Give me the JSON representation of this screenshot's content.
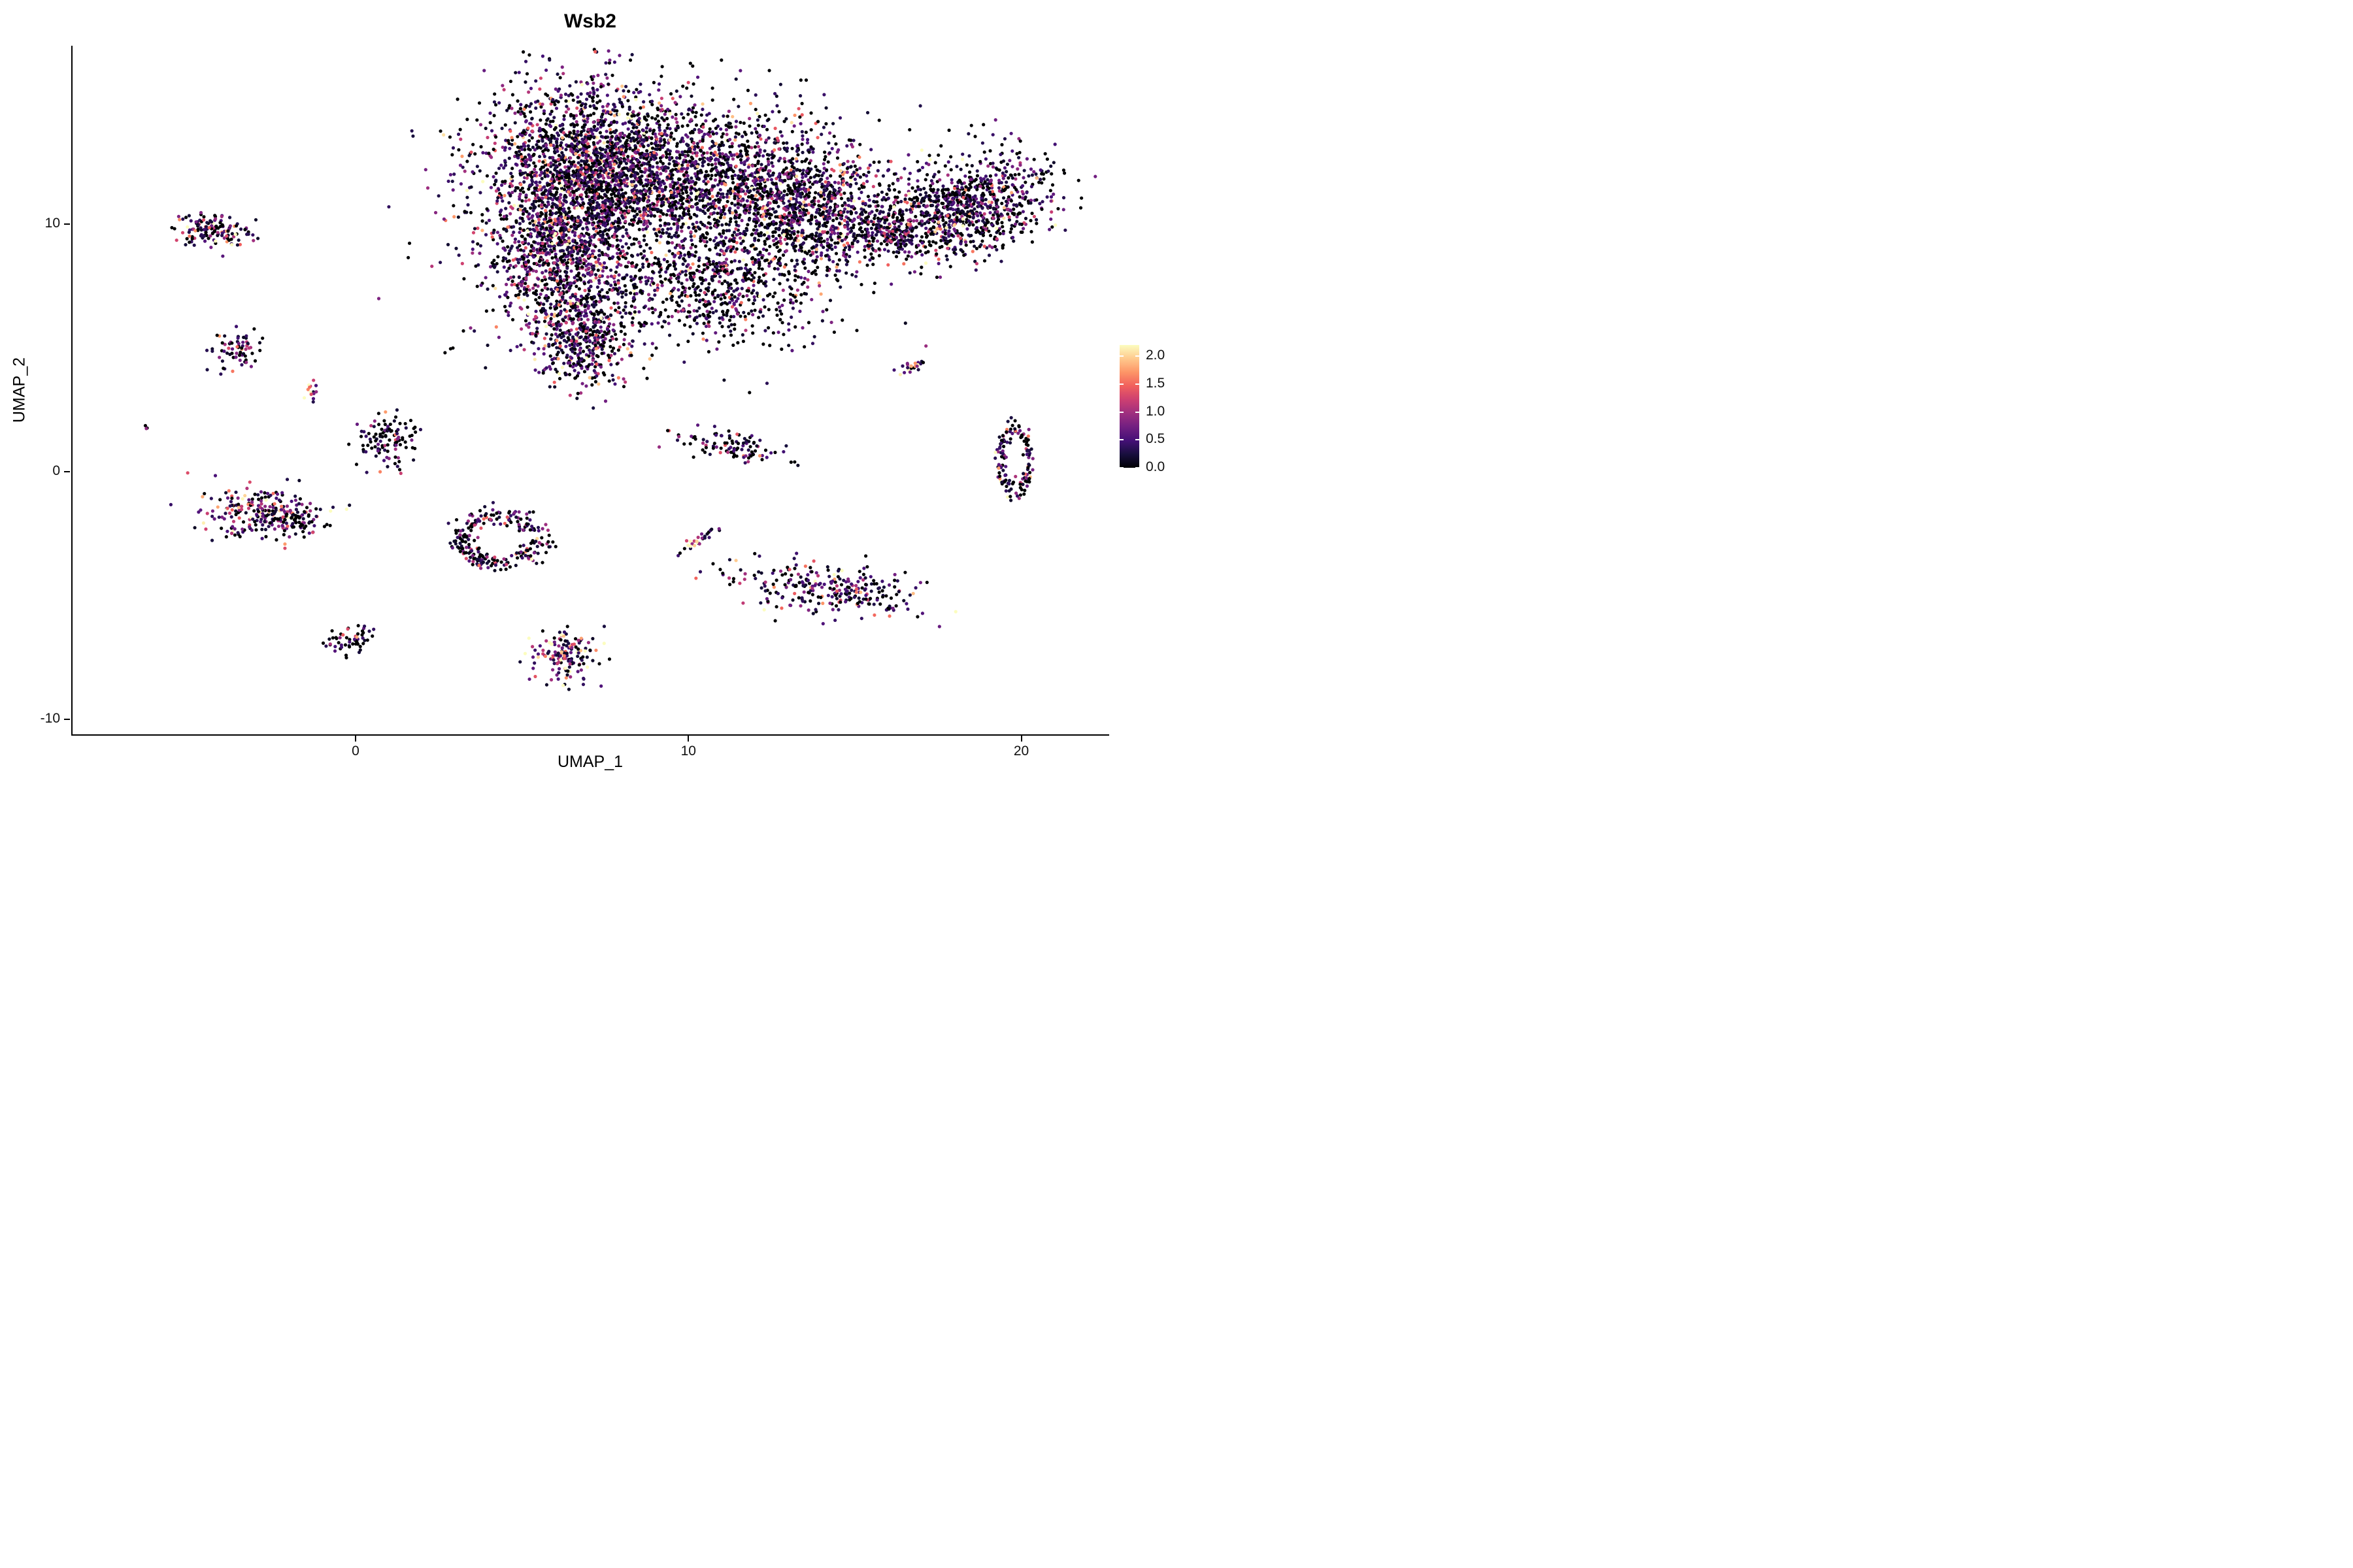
{
  "title": "Wsb2",
  "axes": {
    "x_label": "UMAP_1",
    "y_label": "UMAP_2"
  },
  "chart_data": {
    "type": "scatter",
    "title": "Wsb2",
    "xlabel": "UMAP_1",
    "ylabel": "UMAP_2",
    "xlim": [
      -8.5,
      22.6
    ],
    "ylim": [
      -10.6,
      17.2
    ],
    "grid": false,
    "x_ticks": [
      {
        "value": 0,
        "label": "0"
      },
      {
        "value": 10,
        "label": "10"
      },
      {
        "value": 20,
        "label": "20"
      }
    ],
    "y_ticks": [
      {
        "value": -10,
        "label": "-10"
      },
      {
        "value": 0,
        "label": "0"
      },
      {
        "value": 10,
        "label": "10"
      }
    ],
    "color_scale": {
      "name": "magma",
      "domain": [
        0,
        2.2
      ],
      "stops": [
        "#000004",
        "#180f3e",
        "#451077",
        "#721f81",
        "#9f2f7f",
        "#cd4071",
        "#f1605d",
        "#fd9567",
        "#fec98d",
        "#fcfdbf"
      ]
    },
    "legend": {
      "position": "right",
      "domain": [
        0,
        2.2
      ],
      "ticks": [
        {
          "value": 2.0,
          "label": "2.0"
        },
        {
          "value": 1.5,
          "label": "1.5"
        },
        {
          "value": 1.0,
          "label": "1.0"
        },
        {
          "value": 0.5,
          "label": "0.5"
        },
        {
          "value": 0.0,
          "label": "0.0"
        }
      ]
    },
    "point_radius": 2.6,
    "seed": 20240607,
    "clusters": [
      {
        "name": "main-upper",
        "cx": 7.2,
        "cy": 12.3,
        "sx": 1.75,
        "sy": 1.65,
        "n": 2200,
        "zero_frac": 0.34,
        "expr_scale": 0.55
      },
      {
        "name": "main-left",
        "cx": 6.3,
        "cy": 8.7,
        "sx": 1.15,
        "sy": 1.6,
        "n": 1100,
        "zero_frac": 0.3,
        "expr_scale": 0.58
      },
      {
        "name": "main-tip",
        "cx": 6.9,
        "cy": 5.4,
        "sx": 0.7,
        "sy": 0.95,
        "n": 380,
        "zero_frac": 0.28,
        "expr_scale": 0.62
      },
      {
        "name": "main-center",
        "cx": 11.2,
        "cy": 11.7,
        "sx": 2.0,
        "sy": 1.5,
        "n": 1250,
        "zero_frac": 0.38,
        "expr_scale": 0.52
      },
      {
        "name": "main-lower-right",
        "cx": 10.9,
        "cy": 7.7,
        "sx": 1.6,
        "sy": 1.25,
        "n": 620,
        "zero_frac": 0.45,
        "expr_scale": 0.5
      },
      {
        "name": "main-right",
        "cx": 13.8,
        "cy": 10.4,
        "sx": 1.25,
        "sy": 1.25,
        "n": 700,
        "zero_frac": 0.36,
        "expr_scale": 0.52
      },
      {
        "name": "bridge",
        "cx": 15.9,
        "cy": 9.6,
        "sx": 0.85,
        "sy": 0.45,
        "n": 220,
        "zero_frac": 0.4,
        "expr_scale": 0.5
      },
      {
        "name": "right-lobe",
        "cx": 18.4,
        "cy": 10.7,
        "sx": 1.35,
        "sy": 0.95,
        "angle": 30,
        "n": 900,
        "zero_frac": 0.38,
        "expr_scale": 0.55
      },
      {
        "name": "main-halo",
        "cx": 9.6,
        "cy": 9.6,
        "sx": 3.2,
        "sy": 2.9,
        "n": 260,
        "zero_frac": 0.6,
        "expr_scale": 0.4
      },
      {
        "name": "sat-top-left",
        "cx": -4.3,
        "cy": 9.7,
        "sx": 0.6,
        "sy": 0.32,
        "angle": -8,
        "n": 140,
        "zero_frac": 0.35,
        "expr_scale": 0.6
      },
      {
        "name": "sat-left-arm",
        "cx": -3.55,
        "cy": 4.95,
        "sx": 0.38,
        "sy": 0.36,
        "n": 70,
        "zero_frac": 0.32,
        "expr_scale": 0.6
      },
      {
        "name": "sat-tiny-bright",
        "cx": -1.35,
        "cy": 3.2,
        "sx": 0.12,
        "sy": 0.2,
        "n": 14,
        "zero_frac": 0.1,
        "expr_scale": 1.0
      },
      {
        "name": "lone-dot",
        "cx": -6.3,
        "cy": 1.75,
        "sx": 0.06,
        "sy": 0.06,
        "n": 3,
        "zero_frac": 0.3,
        "expr_scale": 0.8
      },
      {
        "name": "sat-center-left",
        "cx": 0.9,
        "cy": 1.3,
        "sx": 0.45,
        "sy": 0.55,
        "n": 110,
        "zero_frac": 0.55,
        "expr_scale": 0.45
      },
      {
        "name": "sat-bright-left",
        "cx": -2.85,
        "cy": -1.65,
        "sx": 0.85,
        "sy": 0.55,
        "n": 230,
        "zero_frac": 0.18,
        "expr_scale": 0.8
      },
      {
        "name": "sat-left-dark-edge",
        "cx": -1.85,
        "cy": -2.05,
        "sx": 0.45,
        "sy": 0.3,
        "n": 60,
        "zero_frac": 0.6,
        "expr_scale": 0.4
      },
      {
        "name": "ring-center",
        "cx": 4.35,
        "cy": -2.7,
        "sx": 1.15,
        "sy": 0.95,
        "shape": "ring",
        "width": 0.18,
        "n": 250,
        "zero_frac": 0.45,
        "expr_scale": 0.5
      },
      {
        "name": "sat-mid-right",
        "cx": 11.3,
        "cy": 1.0,
        "sx": 0.85,
        "sy": 0.28,
        "angle": -12,
        "n": 100,
        "zero_frac": 0.45,
        "expr_scale": 0.55
      },
      {
        "name": "streak-bright-center",
        "cx": 10.4,
        "cy": -2.7,
        "sx": 0.38,
        "sy": 0.1,
        "angle": 35,
        "n": 26,
        "zero_frac": 0.08,
        "expr_scale": 1.1
      },
      {
        "name": "sat-lower-right",
        "cx": 14.2,
        "cy": -4.7,
        "sx": 1.4,
        "sy": 0.55,
        "angle": -8,
        "n": 280,
        "zero_frac": 0.4,
        "expr_scale": 0.55
      },
      {
        "name": "sat-bottom-bright",
        "cx": 6.3,
        "cy": -7.4,
        "sx": 0.5,
        "sy": 0.55,
        "n": 150,
        "zero_frac": 0.15,
        "expr_scale": 0.85
      },
      {
        "name": "sat-bottom-left",
        "cx": -0.15,
        "cy": -6.85,
        "sx": 0.45,
        "sy": 0.22,
        "angle": 20,
        "n": 55,
        "zero_frac": 0.45,
        "expr_scale": 0.5
      },
      {
        "name": "streak-right-bright",
        "cx": 16.8,
        "cy": 4.3,
        "sx": 0.3,
        "sy": 0.1,
        "angle": 38,
        "n": 22,
        "zero_frac": 0.25,
        "expr_scale": 0.9
      },
      {
        "name": "ring-far-right",
        "cx": 19.8,
        "cy": 0.45,
        "sx": 0.45,
        "sy": 1.25,
        "shape": "ring",
        "width": 0.18,
        "n": 140,
        "zero_frac": 0.3,
        "expr_scale": 0.7
      }
    ]
  }
}
